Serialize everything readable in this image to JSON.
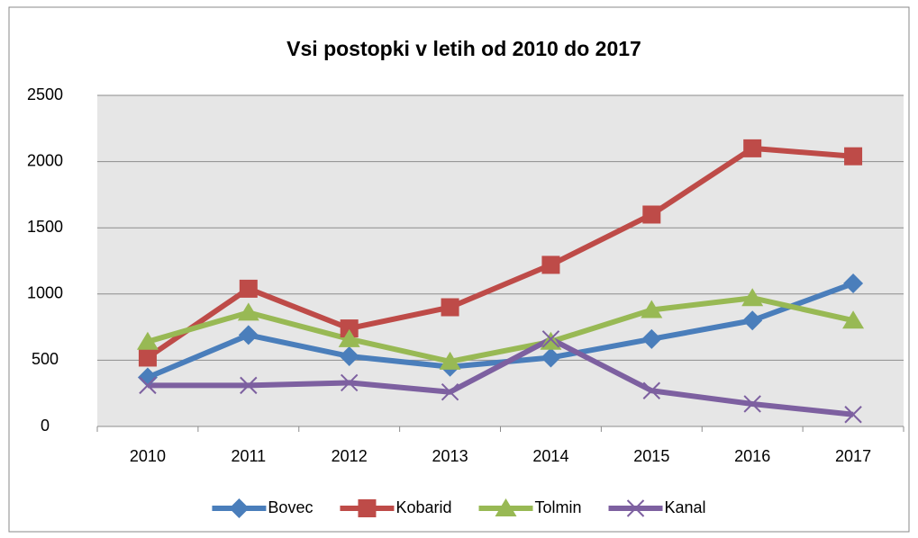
{
  "chart_data": {
    "type": "line",
    "title": "Vsi postopki v letih od 2010 do 2017",
    "categories": [
      "2010",
      "2011",
      "2012",
      "2013",
      "2014",
      "2015",
      "2016",
      "2017"
    ],
    "series": [
      {
        "name": "Bovec",
        "color": "#4a7ebb",
        "marker": "diamond",
        "values": [
          370,
          690,
          530,
          450,
          520,
          660,
          800,
          1080
        ]
      },
      {
        "name": "Kobarid",
        "color": "#be4b48",
        "marker": "square",
        "values": [
          520,
          1040,
          740,
          900,
          1220,
          1600,
          2100,
          2040
        ]
      },
      {
        "name": "Tolmin",
        "color": "#98b954",
        "marker": "triangle",
        "values": [
          640,
          860,
          660,
          490,
          640,
          880,
          970,
          800
        ]
      },
      {
        "name": "Kanal",
        "color": "#7d60a0",
        "marker": "x",
        "values": [
          310,
          310,
          330,
          260,
          660,
          270,
          170,
          90
        ]
      }
    ],
    "ylim": [
      0,
      2500
    ],
    "yticks": [
      0,
      500,
      1000,
      1500,
      2000,
      2500
    ],
    "grid": true,
    "legend": "bottom"
  }
}
